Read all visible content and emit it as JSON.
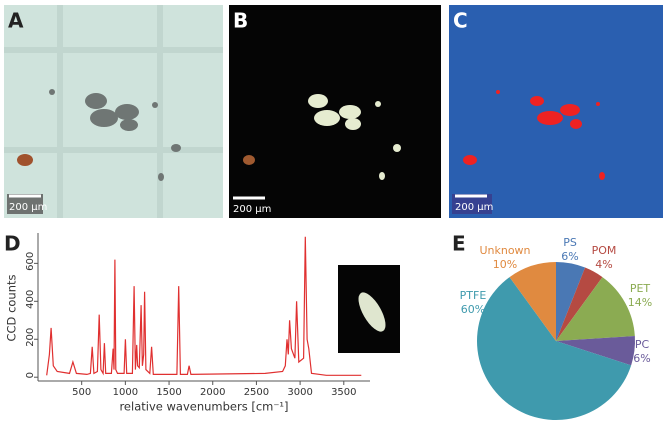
{
  "panels": {
    "a": {
      "letter": "A",
      "scale": "200 µm"
    },
    "b": {
      "letter": "B",
      "scale": "200 µm"
    },
    "c": {
      "letter": "C",
      "scale": "200 µm"
    },
    "d": {
      "letter": "D"
    },
    "e": {
      "letter": "E"
    }
  },
  "chart_data": [
    {
      "type": "line",
      "x_label": "relative wavenumbers [cm⁻¹]",
      "y_label": "CCD counts",
      "xlim": [
        0,
        3800
      ],
      "xticks": [
        500,
        1000,
        1500,
        2000,
        2500,
        3000,
        3500
      ],
      "ylim": [
        -20,
        760
      ],
      "yticks": [
        0,
        200,
        400,
        600
      ],
      "series": [
        {
          "color": "#e03030",
          "x": [
            100,
            130,
            150,
            175,
            220,
            360,
            400,
            440,
            560,
            600,
            620,
            640,
            680,
            700,
            720,
            745,
            760,
            775,
            840,
            860,
            870,
            880,
            890,
            910,
            985,
            1000,
            1015,
            1080,
            1100,
            1115,
            1130,
            1140,
            1160,
            1180,
            1195,
            1210,
            1220,
            1235,
            1280,
            1300,
            1320,
            1590,
            1610,
            1630,
            1710,
            1730,
            1750,
            2600,
            2800,
            2830,
            2850,
            2865,
            2880,
            2900,
            2940,
            2960,
            2985,
            3040,
            3060,
            3080,
            3100,
            3130,
            3300,
            3700
          ],
          "values": [
            10,
            120,
            260,
            60,
            30,
            20,
            80,
            20,
            15,
            20,
            160,
            20,
            30,
            330,
            40,
            20,
            180,
            20,
            20,
            150,
            40,
            620,
            40,
            20,
            20,
            200,
            20,
            20,
            480,
            40,
            170,
            60,
            50,
            380,
            60,
            120,
            450,
            40,
            20,
            160,
            15,
            15,
            480,
            15,
            15,
            60,
            15,
            20,
            30,
            60,
            200,
            120,
            300,
            150,
            100,
            400,
            80,
            100,
            740,
            200,
            150,
            20,
            10,
            10
          ]
        }
      ]
    },
    {
      "type": "pie",
      "categories": [
        "PS",
        "POM",
        "PET",
        "PC",
        "PTFE",
        "Unknown"
      ],
      "values": [
        6,
        4,
        14,
        6,
        60,
        10
      ],
      "value_labels": [
        "6%",
        "4%",
        "14%",
        "6%",
        "60%",
        "10%"
      ],
      "colors": [
        "#4a78b4",
        "#b54a42",
        "#8bab52",
        "#6a5b9a",
        "#3f9aad",
        "#e08a40"
      ]
    }
  ]
}
